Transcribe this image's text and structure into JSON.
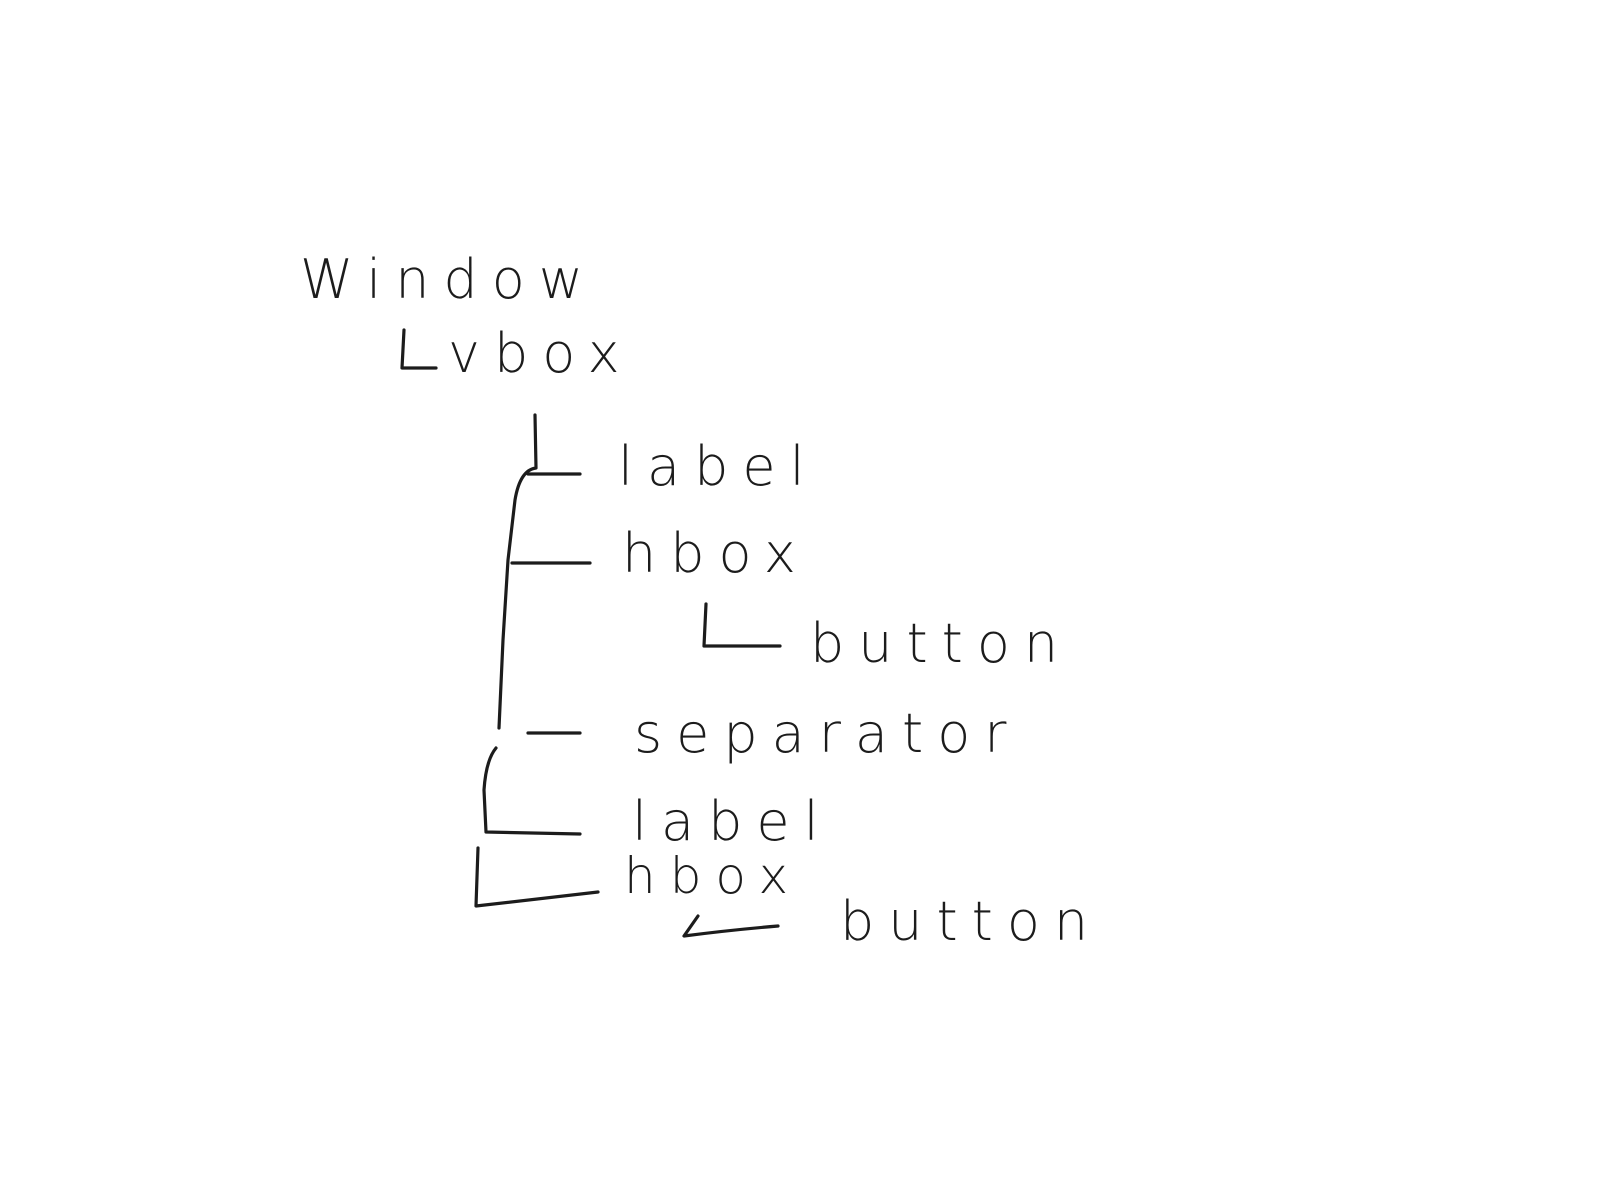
{
  "tree": {
    "root": {
      "label": "Window"
    },
    "vbox": {
      "label": "vbox"
    },
    "children": [
      {
        "label": "label"
      },
      {
        "label": "hbox",
        "child": {
          "label": "button"
        }
      },
      {
        "label": "separator"
      },
      {
        "label": "label"
      },
      {
        "label": "hbox",
        "child": {
          "label": "button"
        }
      }
    ]
  }
}
